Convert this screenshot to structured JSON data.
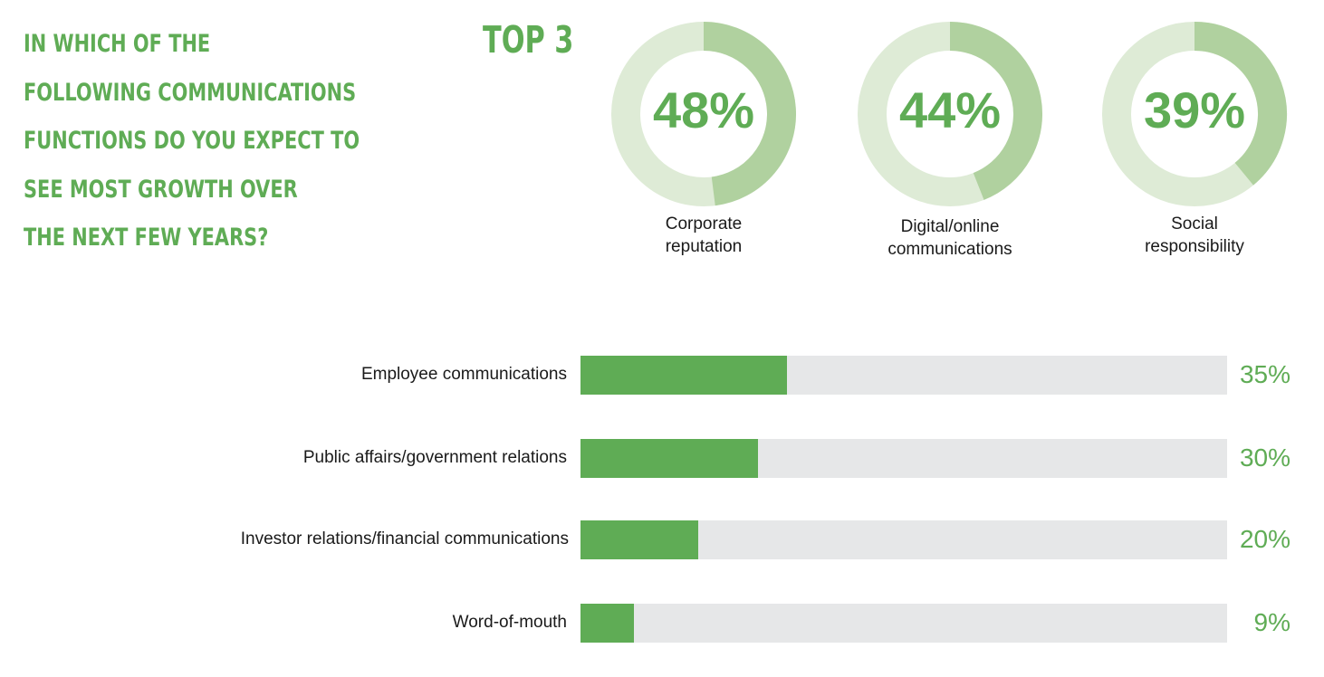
{
  "question": {
    "lines": [
      "IN WHICH OF THE",
      "FOLLOWING COMMUNICATIONS",
      "FUNCTIONS DO YOU EXPECT TO",
      "SEE MOST GROWTH OVER",
      "THE NEXT FEW YEARS?"
    ]
  },
  "top3_label": "TOP 3",
  "colors": {
    "accent": "#5fac55",
    "donut_fill": "#b0d19f",
    "donut_track": "#deebd6",
    "bar_track": "#e6e7e8"
  },
  "chart_data": [
    {
      "type": "pie",
      "title": "TOP 3",
      "items": [
        {
          "label_lines": [
            "Corporate",
            "reputation"
          ],
          "value": 48,
          "value_label": "48%"
        },
        {
          "label_lines": [
            "Digital/online",
            "communications"
          ],
          "value": 44,
          "value_label": "44%"
        },
        {
          "label_lines": [
            "Social",
            "responsibility"
          ],
          "value": 39,
          "value_label": "39%"
        }
      ]
    },
    {
      "type": "bar",
      "orientation": "horizontal",
      "categories": [
        "Employee communications",
        "Public affairs/government relations",
        "Investor relations/financial communications",
        "Word-of-mouth"
      ],
      "values": [
        35,
        30,
        20,
        9
      ],
      "value_labels": [
        "35%",
        "30%",
        "20%",
        "9%"
      ],
      "xlim": [
        0,
        100
      ]
    }
  ]
}
